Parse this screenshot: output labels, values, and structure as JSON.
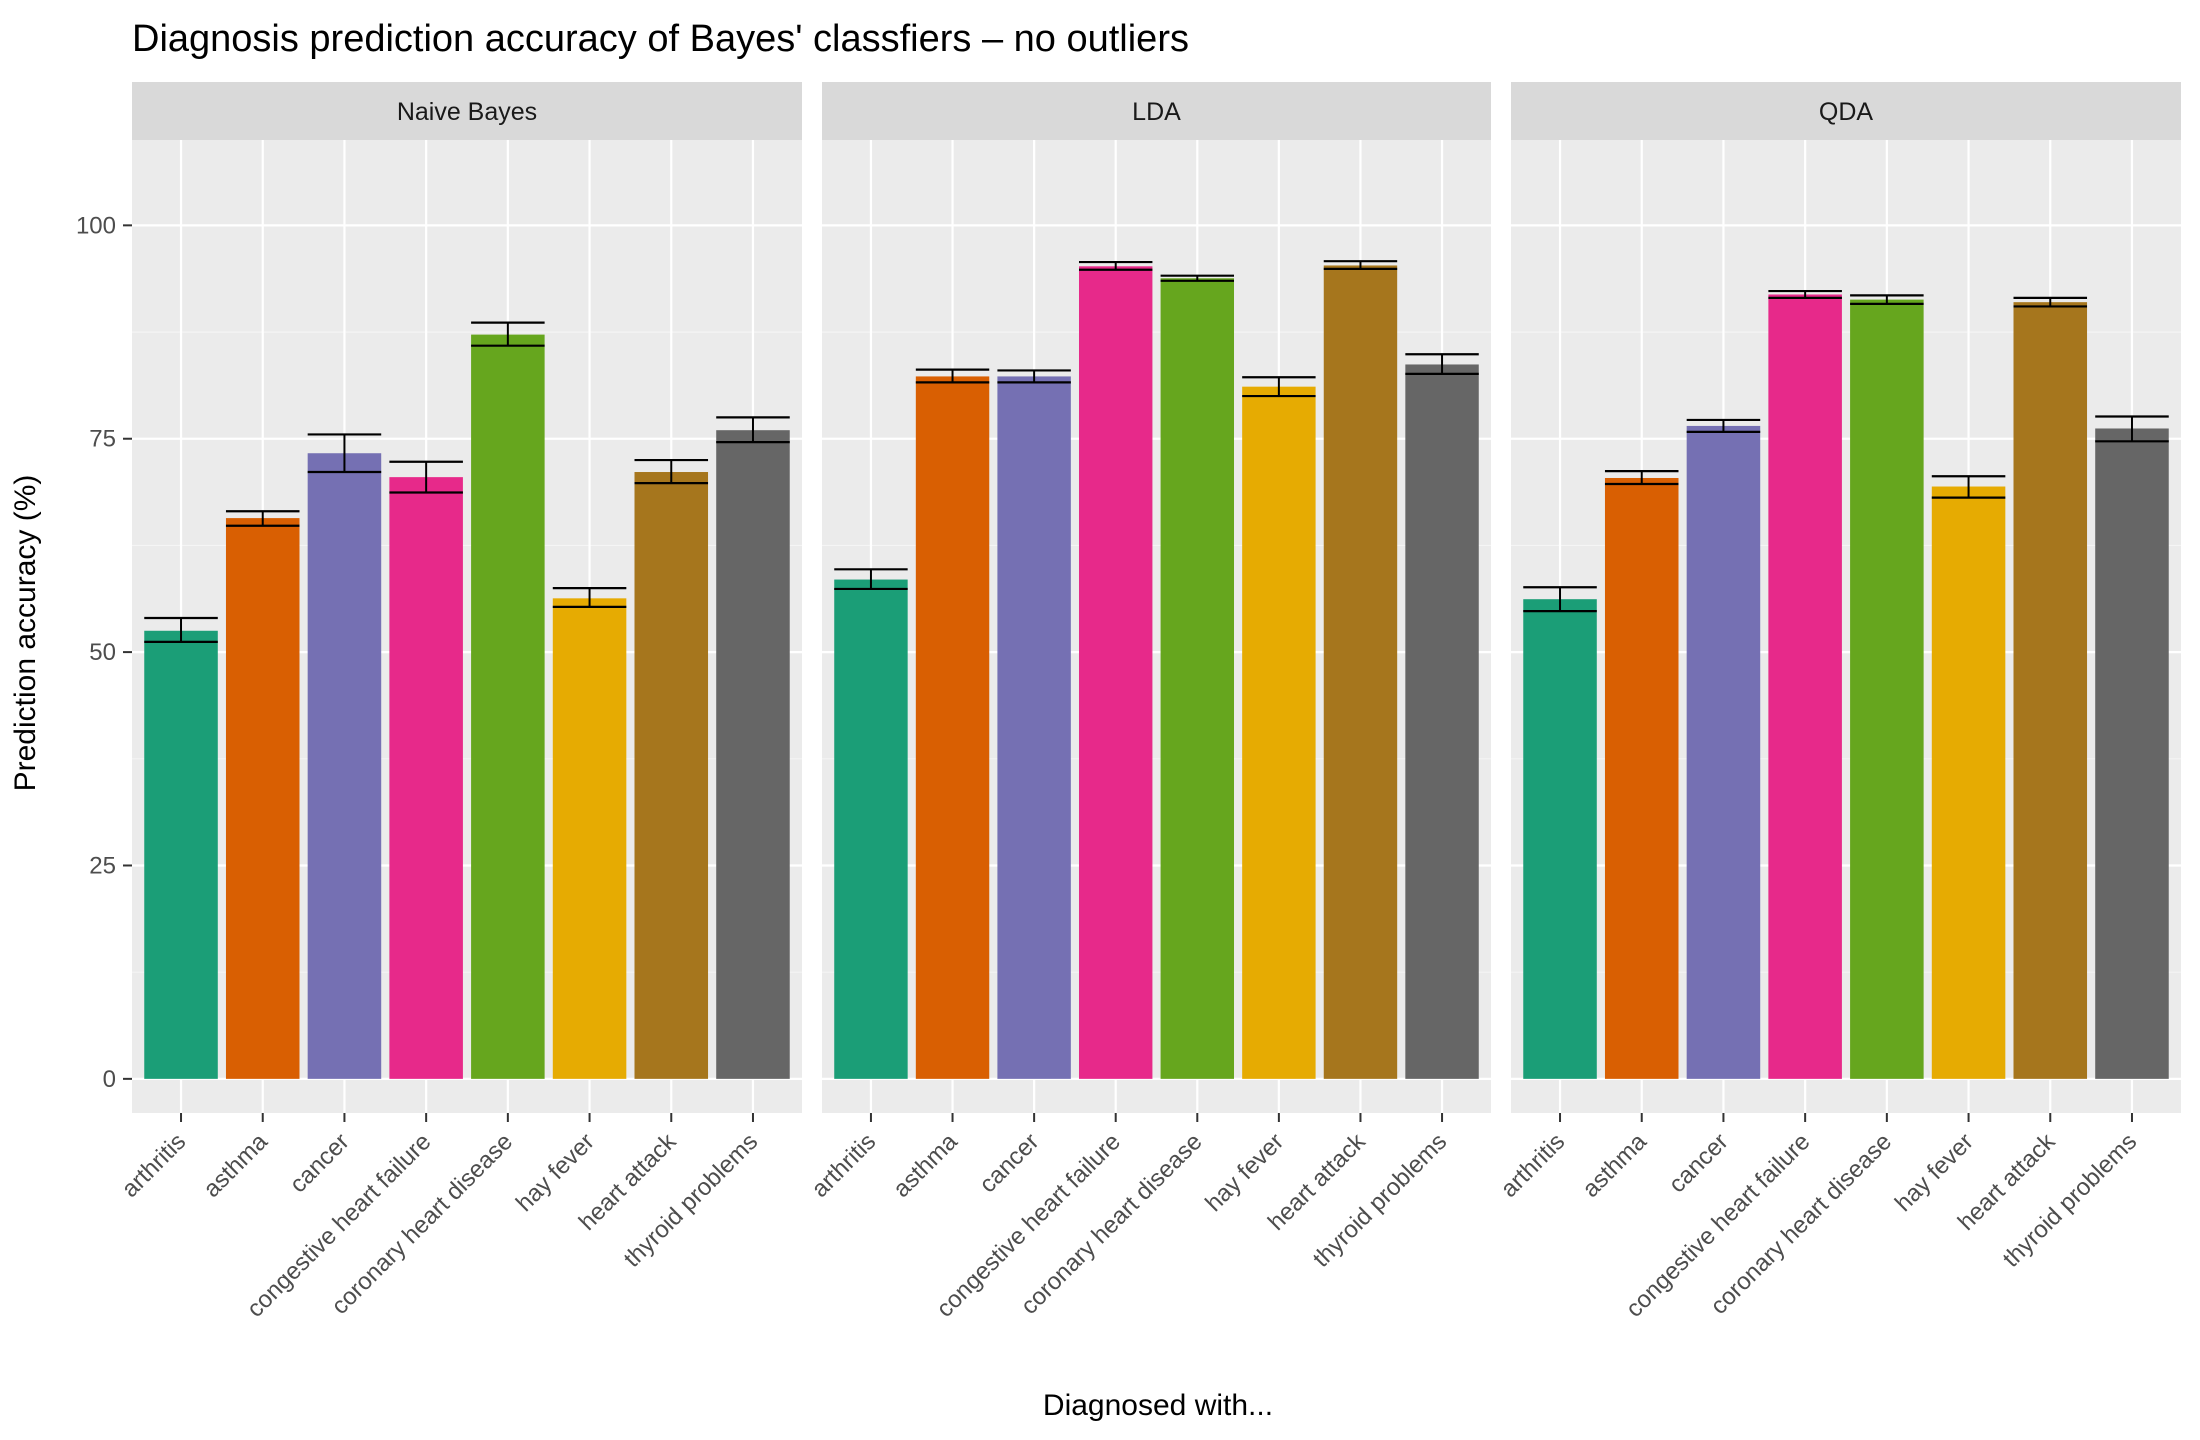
{
  "chart_data": {
    "type": "bar",
    "title": "Diagnosis prediction accuracy of Bayes' classfiers – no outliers",
    "xlabel": "Diagnosed with...",
    "ylabel": "Prediction accuracy (%)",
    "ylim": [
      -4,
      110
    ],
    "yticks": [
      0,
      25,
      50,
      75,
      100
    ],
    "grid": true,
    "legend": "none",
    "categories": [
      "arthritis",
      "asthma",
      "cancer",
      "congestive heart failure",
      "coronary heart disease",
      "hay fever",
      "heart attack",
      "thyroid problems"
    ],
    "colors": [
      "#1b9e77",
      "#d95f02",
      "#7570b3",
      "#e7298a",
      "#66a61e",
      "#e6ab02",
      "#a6761d",
      "#666666"
    ],
    "panel_colors": {
      "panel_bg": "#ebebeb",
      "strip_bg": "#d9d9d9",
      "grid_major": "#ffffff",
      "grid_minor": "#f5f5f5"
    },
    "facets": [
      {
        "name": "Naive Bayes",
        "values": [
          52.5,
          65.7,
          73.3,
          70.5,
          87.2,
          56.3,
          71.1,
          76.0
        ],
        "err_low": [
          51.2,
          64.8,
          71.1,
          68.7,
          85.9,
          55.3,
          69.8,
          74.6
        ],
        "err_high": [
          54.0,
          66.5,
          75.5,
          72.3,
          88.6,
          57.5,
          72.5,
          77.5
        ]
      },
      {
        "name": "LDA",
        "values": [
          58.5,
          82.3,
          82.3,
          95.2,
          93.8,
          81.1,
          95.3,
          83.7
        ],
        "err_low": [
          57.4,
          81.6,
          81.6,
          94.8,
          93.5,
          80.0,
          94.9,
          82.6
        ],
        "err_high": [
          59.7,
          83.1,
          83.0,
          95.7,
          94.1,
          82.2,
          95.8,
          84.9
        ]
      },
      {
        "name": "QDA",
        "values": [
          56.2,
          70.4,
          76.5,
          91.9,
          91.3,
          69.4,
          91.0,
          76.2
        ],
        "err_low": [
          54.8,
          69.7,
          75.8,
          91.5,
          90.8,
          68.1,
          90.5,
          74.7
        ],
        "err_high": [
          57.6,
          71.2,
          77.2,
          92.3,
          91.8,
          70.6,
          91.5,
          77.6
        ]
      }
    ]
  }
}
